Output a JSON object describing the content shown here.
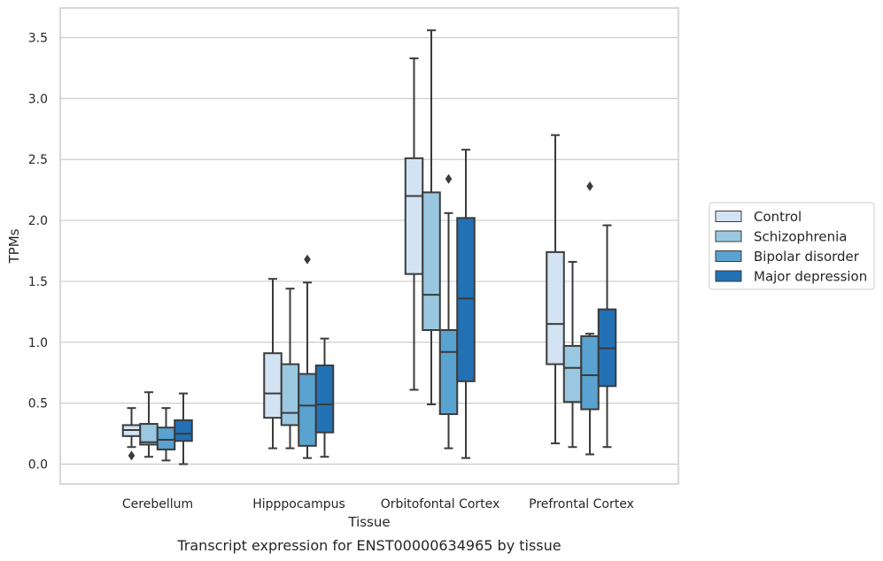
{
  "caption": "Transcript expression for ENST00000634965 by tissue",
  "chart_data": {
    "type": "box",
    "xlabel": "Tissue",
    "ylabel": "TPMs",
    "ylim": [
      -0.17,
      3.72
    ],
    "yticks": [
      "0.0",
      "0.5",
      "1.0",
      "1.5",
      "2.0",
      "2.5",
      "3.0",
      "3.5"
    ],
    "ytick_values": [
      0.0,
      0.5,
      1.0,
      1.5,
      2.0,
      2.5,
      3.0,
      3.5
    ],
    "grid": "horizontal",
    "legend_position": "right",
    "categories": [
      "Cerebellum",
      "Hipppocampus",
      "Orbitofontal Cortex",
      "Prefrontal Cortex"
    ],
    "series": [
      {
        "name": "Control",
        "color": "#d2e3f3",
        "boxes": [
          {
            "whislo": 0.14,
            "q1": 0.23,
            "med": 0.28,
            "q3": 0.32,
            "whishi": 0.46,
            "fliers": [
              0.07
            ]
          },
          {
            "whislo": 0.13,
            "q1": 0.38,
            "med": 0.58,
            "q3": 0.91,
            "whishi": 1.52,
            "fliers": []
          },
          {
            "whislo": 0.61,
            "q1": 1.56,
            "med": 2.2,
            "q3": 2.51,
            "whishi": 3.33,
            "fliers": []
          },
          {
            "whislo": 0.17,
            "q1": 0.82,
            "med": 1.15,
            "q3": 1.74,
            "whishi": 2.7,
            "fliers": []
          }
        ]
      },
      {
        "name": "Schizophrenia",
        "color": "#9ac8e0",
        "boxes": [
          {
            "whislo": 0.06,
            "q1": 0.16,
            "med": 0.18,
            "q3": 0.33,
            "whishi": 0.59,
            "fliers": []
          },
          {
            "whislo": 0.13,
            "q1": 0.32,
            "med": 0.42,
            "q3": 0.82,
            "whishi": 1.44,
            "fliers": []
          },
          {
            "whislo": 0.49,
            "q1": 1.1,
            "med": 1.39,
            "q3": 2.23,
            "whishi": 3.56,
            "fliers": []
          },
          {
            "whislo": 0.14,
            "q1": 0.51,
            "med": 0.79,
            "q3": 0.97,
            "whishi": 1.66,
            "fliers": []
          }
        ]
      },
      {
        "name": "Bipolar disorder",
        "color": "#5aa2cf",
        "boxes": [
          {
            "whislo": 0.03,
            "q1": 0.12,
            "med": 0.2,
            "q3": 0.3,
            "whishi": 0.46,
            "fliers": []
          },
          {
            "whislo": 0.05,
            "q1": 0.15,
            "med": 0.48,
            "q3": 0.74,
            "whishi": 1.49,
            "fliers": [
              1.68
            ]
          },
          {
            "whislo": 0.13,
            "q1": 0.41,
            "med": 0.92,
            "q3": 1.1,
            "whishi": 2.06,
            "fliers": [
              2.34
            ]
          },
          {
            "whislo": 0.08,
            "q1": 0.45,
            "med": 0.73,
            "q3": 1.05,
            "whishi": 1.07,
            "fliers": [
              2.28
            ]
          }
        ]
      },
      {
        "name": "Major depression",
        "color": "#2271b5",
        "boxes": [
          {
            "whislo": 0.0,
            "q1": 0.19,
            "med": 0.25,
            "q3": 0.36,
            "whishi": 0.58,
            "fliers": []
          },
          {
            "whislo": 0.06,
            "q1": 0.26,
            "med": 0.49,
            "q3": 0.81,
            "whishi": 1.03,
            "fliers": []
          },
          {
            "whislo": 0.05,
            "q1": 0.68,
            "med": 1.36,
            "q3": 2.02,
            "whishi": 2.58,
            "fliers": []
          },
          {
            "whislo": 0.14,
            "q1": 0.64,
            "med": 0.95,
            "q3": 1.27,
            "whishi": 1.96,
            "fliers": []
          }
        ]
      }
    ]
  }
}
